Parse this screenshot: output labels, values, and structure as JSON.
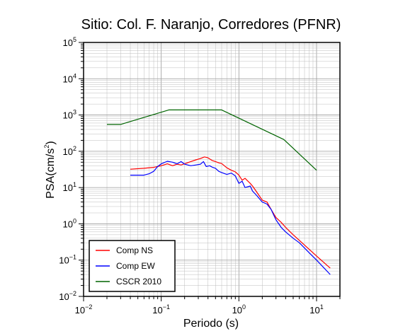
{
  "chart_data": {
    "type": "line",
    "title": "Sitio: Col. F. Naranjo, Corredores (PFNR)",
    "xlabel": "Periodo (s)",
    "ylabel": {
      "base": "PSA(cm/s",
      "sup": "2",
      "close": ")"
    },
    "x_scale": "log",
    "y_scale": "log",
    "xlim": [
      0.01,
      20
    ],
    "ylim": [
      0.01,
      100000
    ],
    "grid": true,
    "legend_position": "bottom-left",
    "x_ticks": [
      {
        "value": 0.01,
        "base": "10",
        "exp": "−2"
      },
      {
        "value": 0.1,
        "base": "10",
        "exp": "−1"
      },
      {
        "value": 1,
        "base": "10",
        "exp": "0"
      },
      {
        "value": 10,
        "base": "10",
        "exp": "1"
      }
    ],
    "y_ticks": [
      {
        "value": 0.01,
        "base": "10",
        "exp": "−2"
      },
      {
        "value": 0.1,
        "base": "10",
        "exp": "−1"
      },
      {
        "value": 1,
        "base": "10",
        "exp": "0"
      },
      {
        "value": 10,
        "base": "10",
        "exp": "1"
      },
      {
        "value": 100,
        "base": "10",
        "exp": "2"
      },
      {
        "value": 1000,
        "base": "10",
        "exp": "3"
      },
      {
        "value": 10000,
        "base": "10",
        "exp": "4"
      },
      {
        "value": 100000,
        "base": "10",
        "exp": "5"
      }
    ],
    "series": [
      {
        "name": "Comp NS",
        "color": "#ff0000",
        "x": [
          0.04,
          0.06,
          0.08,
          0.1,
          0.12,
          0.14,
          0.16,
          0.18,
          0.2,
          0.24,
          0.28,
          0.32,
          0.36,
          0.4,
          0.45,
          0.5,
          0.55,
          0.6,
          0.7,
          0.8,
          0.9,
          1.0,
          1.1,
          1.2,
          1.4,
          1.5,
          1.7,
          2.0,
          2.3,
          2.6,
          3.0,
          3.5,
          4.0,
          5.0,
          6.0,
          8.0,
          10.0,
          15.0
        ],
        "y": [
          32,
          34,
          36,
          40,
          45,
          40,
          44,
          42,
          45,
          52,
          58,
          63,
          70,
          66,
          56,
          52,
          48,
          46,
          35,
          30,
          27,
          22,
          16,
          18,
          13,
          11,
          7.5,
          4.5,
          4.0,
          2.5,
          1.5,
          1.1,
          0.8,
          0.5,
          0.35,
          0.2,
          0.13,
          0.06
        ]
      },
      {
        "name": "Comp EW",
        "color": "#0000ff",
        "x": [
          0.04,
          0.06,
          0.07,
          0.08,
          0.09,
          0.1,
          0.12,
          0.14,
          0.16,
          0.18,
          0.2,
          0.24,
          0.28,
          0.32,
          0.35,
          0.38,
          0.42,
          0.46,
          0.5,
          0.55,
          0.6,
          0.7,
          0.8,
          0.9,
          1.0,
          1.1,
          1.2,
          1.4,
          1.5,
          1.7,
          2.0,
          2.3,
          2.6,
          3.0,
          3.5,
          4.0,
          5.0,
          6.0,
          8.0,
          10.0,
          15.0
        ],
        "y": [
          22,
          22,
          24,
          28,
          38,
          45,
          53,
          50,
          45,
          52,
          44,
          40,
          42,
          44,
          52,
          38,
          40,
          36,
          34,
          28,
          26,
          23,
          25,
          21,
          13,
          15,
          10,
          11,
          8,
          6,
          4.0,
          3.5,
          2.5,
          1.3,
          0.8,
          0.6,
          0.4,
          0.3,
          0.16,
          0.1,
          0.04
        ]
      },
      {
        "name": "CSCR 2010",
        "color": "#006400",
        "x": [
          0.02,
          0.03,
          0.125,
          0.6,
          3.8,
          10.0
        ],
        "y": [
          550,
          550,
          1380,
          1380,
          210,
          30
        ]
      }
    ]
  }
}
